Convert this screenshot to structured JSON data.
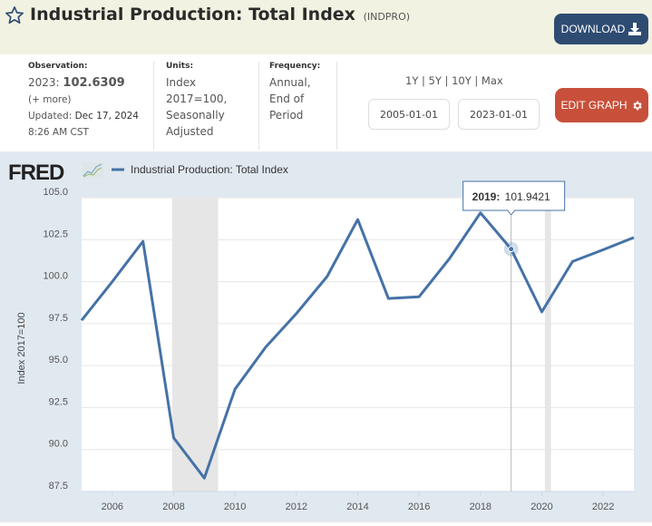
{
  "header": {
    "title": "Industrial Production: Total Index",
    "series_id": "(INDPRO)",
    "download_label": "DOWNLOAD"
  },
  "meta": {
    "observation_label": "Observation:",
    "observation_period": "2023:",
    "observation_value": "102.6309",
    "more_label": "(+ more)",
    "updated_label": "Updated:",
    "updated_value": "Dec 17, 2024",
    "updated_time": "8:26 AM CST",
    "units_label": "Units:",
    "units_lines": [
      "Index",
      "2017=100,",
      "Seasonally",
      "Adjusted"
    ],
    "frequency_label": "Frequency:",
    "frequency_lines": [
      "Annual,",
      "End of",
      "Period"
    ]
  },
  "controls": {
    "range_options": [
      "1Y",
      "5Y",
      "10Y",
      "Max"
    ],
    "start_date": "2005-01-01",
    "end_date": "2023-01-01",
    "edit_graph_label": "EDIT GRAPH"
  },
  "colors": {
    "series": "#4572a7",
    "download_button": "#2e4c72",
    "edit_button": "#c8503a",
    "recession": "#e6e6e6",
    "chart_bg": "#e1e9f0"
  },
  "chart_data": {
    "type": "line",
    "logo": "FRED",
    "legend": [
      "Industrial Production: Total Index"
    ],
    "legend_position": "top-left",
    "ylabel": "Index 2017=100",
    "xlabel": "",
    "ylim": [
      87.5,
      105.0
    ],
    "yticks": [
      87.5,
      90.0,
      92.5,
      95.0,
      97.5,
      100.0,
      102.5,
      105.0
    ],
    "ytick_labels": [
      "87.5",
      "90.0",
      "92.5",
      "95.0",
      "97.5",
      "100.0",
      "102.5",
      "105.0"
    ],
    "xlim": [
      2005,
      2023
    ],
    "xticks": [
      2006,
      2008,
      2010,
      2012,
      2014,
      2016,
      2018,
      2020,
      2022
    ],
    "xtick_labels": [
      "2006",
      "2008",
      "2010",
      "2012",
      "2014",
      "2016",
      "2018",
      "2020",
      "2022"
    ],
    "grid": true,
    "recessions": [
      [
        2007.95,
        2009.45
      ],
      [
        2020.1,
        2020.3
      ]
    ],
    "series": [
      {
        "name": "Industrial Production: Total Index",
        "x": [
          2005,
          2006,
          2007,
          2008,
          2009,
          2010,
          2011,
          2012,
          2013,
          2014,
          2015,
          2016,
          2017,
          2018,
          2019,
          2020,
          2021,
          2022,
          2023
        ],
        "values": [
          97.7,
          100.0,
          102.4,
          90.7,
          88.3,
          93.6,
          96.1,
          98.1,
          100.3,
          103.7,
          99.0,
          99.1,
          101.4,
          104.1,
          101.9421,
          98.2,
          101.2,
          101.9,
          102.6309
        ]
      }
    ],
    "tooltip": {
      "label": "2019:",
      "value": "101.9421",
      "x": 2019
    }
  }
}
